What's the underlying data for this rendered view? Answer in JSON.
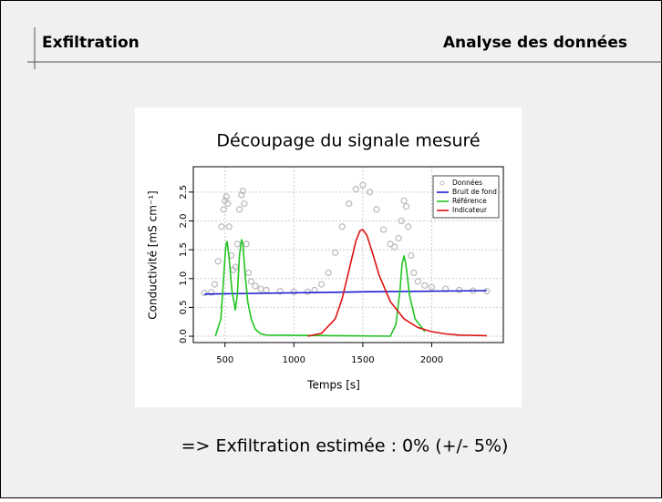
{
  "header": {
    "left": "Exfiltration",
    "right": "Analyse des données"
  },
  "conclusion": "=> Exfiltration estimée : 0% (+/- 5%)",
  "chart_data": {
    "type": "line",
    "title": "Découpage du signale mesuré",
    "x_label": "Temps [s]",
    "y_label": "Conductivité  [mS cm⁻¹]",
    "xlim": [
      270,
      2520
    ],
    "ylim": [
      -0.11,
      2.94
    ],
    "xticks": [
      500,
      1000,
      1500,
      2000
    ],
    "yticks": [
      {
        "value": 0,
        "label": "0.0"
      },
      0.5,
      {
        "value": 1,
        "label": "1.0"
      },
      1.5,
      {
        "value": 2,
        "label": "2.0"
      },
      2.5
    ],
    "grid": true,
    "legend": "top-right",
    "series": [
      {
        "name": "Données",
        "color": "#bdbdbd",
        "mode": "markers",
        "x": [
          350,
          400,
          425,
          450,
          475,
          490,
          500,
          510,
          520,
          530,
          545,
          560,
          575,
          590,
          605,
          620,
          630,
          640,
          655,
          670,
          690,
          720,
          760,
          800,
          900,
          1000,
          1100,
          1150,
          1200,
          1250,
          1300,
          1350,
          1400,
          1450,
          1500,
          1550,
          1600,
          1650,
          1700,
          1730,
          1760,
          1780,
          1800,
          1815,
          1830,
          1850,
          1870,
          1900,
          1950,
          2000,
          2100,
          2200,
          2300,
          2400
        ],
        "values": [
          0.75,
          0.76,
          0.9,
          1.3,
          1.9,
          2.2,
          2.35,
          2.42,
          2.3,
          1.9,
          1.4,
          1.15,
          1.2,
          1.6,
          2.2,
          2.45,
          2.52,
          2.3,
          1.6,
          1.1,
          0.95,
          0.87,
          0.82,
          0.8,
          0.78,
          0.77,
          0.77,
          0.8,
          0.9,
          1.1,
          1.45,
          1.9,
          2.3,
          2.55,
          2.62,
          2.5,
          2.2,
          1.85,
          1.6,
          1.55,
          1.7,
          2.0,
          2.35,
          2.25,
          1.9,
          1.4,
          1.1,
          0.95,
          0.88,
          0.85,
          0.82,
          0.8,
          0.79,
          0.78
        ]
      },
      {
        "name": "Bruit de fond",
        "color": "#1a1ad0",
        "mode": "lines",
        "x": [
          350,
          1500,
          2400
        ],
        "values": [
          0.73,
          0.77,
          0.79
        ]
      },
      {
        "name": "Référence",
        "color": "#22c522",
        "mode": "lines",
        "x": [
          430,
          470,
          490,
          505,
          515,
          530,
          550,
          575,
          590,
          605,
          620,
          630,
          645,
          665,
          690,
          720,
          760,
          800,
          1700,
          1740,
          1770,
          1785,
          1800,
          1815,
          1840,
          1880,
          1950
        ],
        "values": [
          0,
          0.3,
          1.0,
          1.55,
          1.65,
          1.35,
          0.8,
          0.45,
          0.75,
          1.4,
          1.68,
          1.6,
          1.1,
          0.6,
          0.3,
          0.12,
          0.04,
          0.02,
          0,
          0.2,
          0.8,
          1.25,
          1.4,
          1.2,
          0.7,
          0.3,
          0.08
        ]
      },
      {
        "name": "Indicateur",
        "color": "#dd1111",
        "mode": "lines",
        "x": [
          1100,
          1200,
          1300,
          1350,
          1400,
          1450,
          1480,
          1500,
          1530,
          1570,
          1620,
          1700,
          1800,
          1900,
          2000,
          2100,
          2200,
          2400
        ],
        "values": [
          0,
          0.05,
          0.3,
          0.65,
          1.15,
          1.65,
          1.83,
          1.85,
          1.75,
          1.45,
          1.05,
          0.6,
          0.3,
          0.15,
          0.08,
          0.04,
          0.02,
          0.01
        ]
      }
    ]
  }
}
